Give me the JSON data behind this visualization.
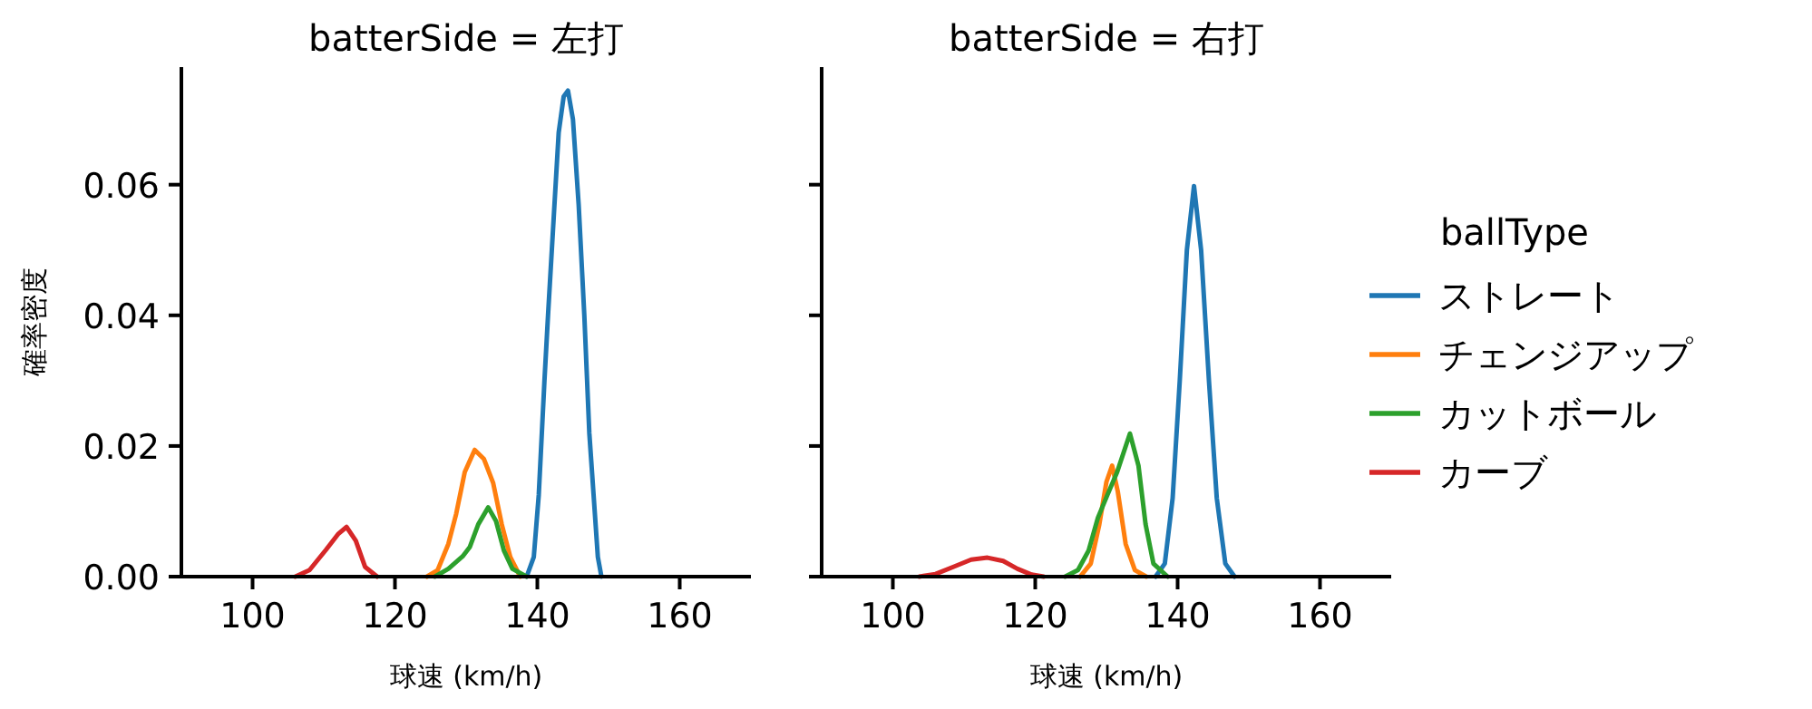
{
  "chart_data": [
    {
      "type": "line",
      "title": "batterSide = 左打",
      "xlabel": "球速 (km/h)",
      "ylabel": "確率密度",
      "xlim": [
        90,
        170
      ],
      "ylim": [
        0,
        0.078
      ],
      "xticks": [
        100,
        120,
        140,
        160
      ],
      "yticks": [
        {
          "value": 0,
          "label": "0.00"
        },
        {
          "value": 0.02,
          "label": "0.02"
        },
        {
          "value": 0.04,
          "label": "0.04"
        },
        {
          "value": 0.06,
          "label": "0.06"
        }
      ],
      "grid": false,
      "legend": false,
      "series": [
        {
          "color": "#1f77b4",
          "x": [
            138.5,
            139.5,
            140.2,
            141,
            141.5,
            142.3,
            143,
            143.7,
            144.3,
            145,
            145.8,
            146.6,
            147.3,
            147.9,
            148.5,
            149
          ],
          "values": [
            0,
            0.003,
            0.0125,
            0.03,
            0.04,
            0.055,
            0.068,
            0.0735,
            0.0744,
            0.07,
            0.057,
            0.04,
            0.022,
            0.0125,
            0.003,
            0
          ]
        },
        {
          "color": "#ff7f0e",
          "x": [
            124.5,
            126,
            127.5,
            128.6,
            129.8,
            131.2,
            132.5,
            133.8,
            135,
            136.2,
            137.6
          ],
          "values": [
            0,
            0.001,
            0.005,
            0.0096,
            0.016,
            0.0194,
            0.018,
            0.0143,
            0.008,
            0.003,
            0
          ]
        },
        {
          "color": "#2ca02c",
          "x": [
            125.6,
            127.5,
            129.5,
            130.5,
            131.7,
            133.1,
            134.2,
            135.3,
            136.5,
            138.5
          ],
          "values": [
            0,
            0.0012,
            0.0031,
            0.0045,
            0.008,
            0.0106,
            0.0085,
            0.004,
            0.0012,
            0
          ]
        },
        {
          "color": "#d62728",
          "x": [
            106,
            108,
            110.3,
            112,
            113.2,
            114.5,
            115.8,
            117.5
          ],
          "values": [
            0,
            0.001,
            0.0041,
            0.0065,
            0.0076,
            0.0055,
            0.0015,
            0
          ]
        }
      ]
    },
    {
      "type": "line",
      "title": "batterSide = 右打",
      "xlabel": "球速 (km/h)",
      "xlim": [
        90,
        170
      ],
      "ylim": [
        0,
        0.078
      ],
      "xticks": [
        100,
        120,
        140,
        160
      ],
      "yticks": [
        0,
        0.02,
        0.04,
        0.06
      ],
      "tick_labels": "x",
      "grid": false,
      "legend": "right",
      "legend_title": "ballType",
      "series": [
        {
          "name": "ストレート",
          "color": "#1f77b4",
          "x": [
            136.9,
            138.2,
            139.3,
            140.3,
            141.3,
            142.3,
            143.3,
            144.4,
            145.5,
            146.7,
            148
          ],
          "values": [
            0,
            0.002,
            0.012,
            0.03,
            0.05,
            0.0598,
            0.05,
            0.03,
            0.012,
            0.002,
            0
          ]
        },
        {
          "name": "チェンジアップ",
          "color": "#ff7f0e",
          "x": [
            126.3,
            127.8,
            129,
            130,
            130.8,
            131.6,
            132.7,
            134,
            135.6
          ],
          "values": [
            0,
            0.002,
            0.008,
            0.0145,
            0.017,
            0.013,
            0.005,
            0.001,
            0
          ]
        },
        {
          "name": "カットボール",
          "color": "#2ca02c",
          "x": [
            124.2,
            126,
            127.5,
            128.8,
            130.1,
            131.5,
            133.3,
            134.5,
            135.5,
            136.6,
            138.6
          ],
          "values": [
            0,
            0.001,
            0.004,
            0.009,
            0.0124,
            0.016,
            0.0219,
            0.017,
            0.008,
            0.002,
            0
          ]
        },
        {
          "name": "カーブ",
          "color": "#d62728",
          "x": [
            103.7,
            106,
            108.5,
            111,
            113.3,
            115.5,
            117.5,
            119.5,
            121.2
          ],
          "values": [
            0,
            0.0004,
            0.0015,
            0.0026,
            0.0029,
            0.0024,
            0.0012,
            0.0003,
            0
          ]
        }
      ]
    }
  ]
}
